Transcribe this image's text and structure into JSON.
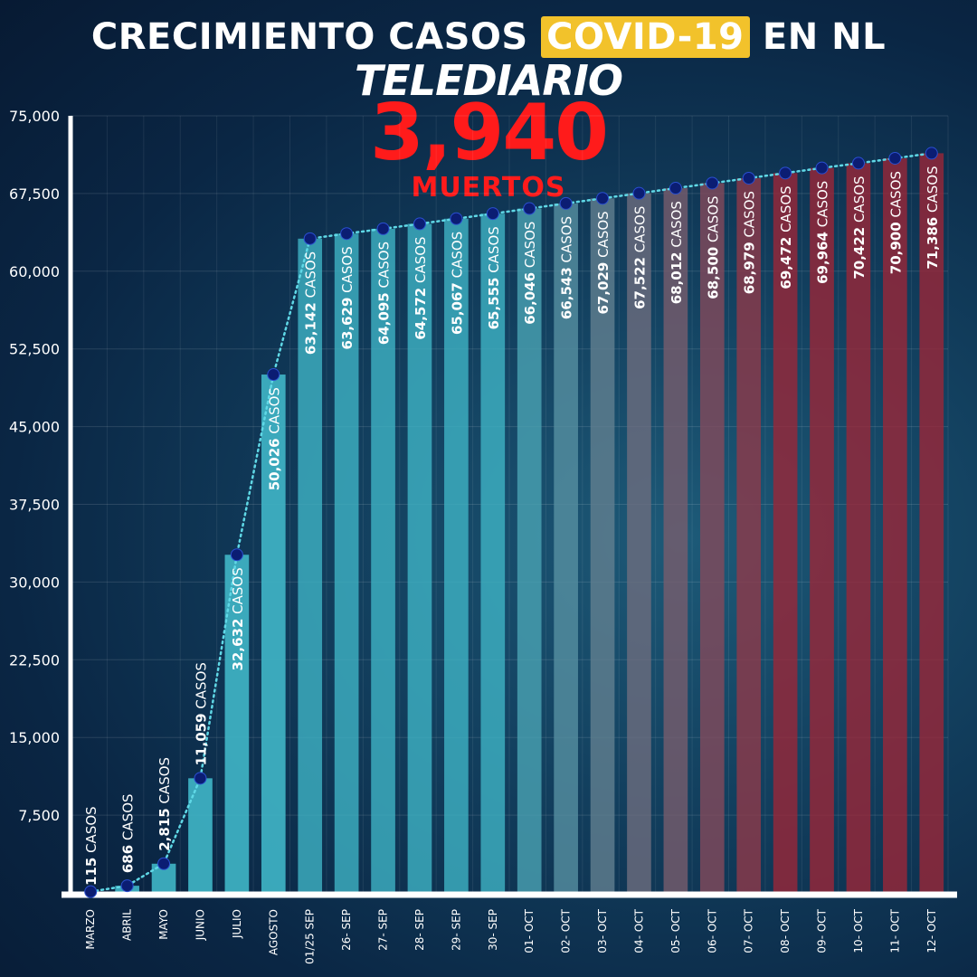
{
  "header": {
    "title_pre": "CRECIMIENTO CASOS ",
    "title_highlight": "COVID-19",
    "title_post": " EN NL",
    "brand": "TELEDIARIO",
    "deaths_value": "3,940",
    "deaths_label": "MUERTOS"
  },
  "chart_data": {
    "type": "bar",
    "title": "CRECIMIENTO CASOS COVID-19 EN NL",
    "ylim": [
      0,
      75000
    ],
    "yticks": [
      7500,
      15000,
      22500,
      30000,
      37500,
      45000,
      52500,
      60000,
      67500,
      75000
    ],
    "ytick_labels": [
      "7,500",
      "15,000",
      "22,500",
      "30,000",
      "37,500",
      "45,000",
      "52,500",
      "60,000",
      "67,500",
      "75,000"
    ],
    "grid": true,
    "categories": [
      "MARZO",
      "ABRIL",
      "MAYO",
      "JUNIO",
      "JULIO",
      "AGOSTO",
      "01/25 SEP",
      "26- SEP",
      "27- SEP",
      "28- SEP",
      "29- SEP",
      "30- SEP",
      "01- OCT",
      "02- OCT",
      "03- OCT",
      "04- OCT",
      "05- OCT",
      "06- OCT",
      "07- OCT",
      "08- OCT",
      "09- OCT",
      "10- OCT",
      "11- OCT",
      "12- OCT"
    ],
    "values": [
      115,
      686,
      2815,
      11059,
      32632,
      50026,
      63142,
      63629,
      64095,
      64572,
      65067,
      65555,
      66046,
      66543,
      67029,
      67522,
      68012,
      68500,
      68979,
      69472,
      69964,
      70422,
      70900,
      71386
    ],
    "value_labels": [
      "115",
      "686",
      "2,815",
      "11,059",
      "32,632",
      "50,026",
      "63,142",
      "63,629",
      "64,095",
      "64,572",
      "65,067",
      "65,555",
      "66,046",
      "66,543",
      "67,029",
      "67,522",
      "68,012",
      "68,500",
      "68,979",
      "69,472",
      "69,964",
      "70,422",
      "70,900",
      "71,386"
    ],
    "value_suffix": " CASOS",
    "colors": {
      "bar_start": "#3fb3c4",
      "bar_end": "#9a2738",
      "line": "#5fd8e6",
      "point": "#0b1d73",
      "axis": "#ffffff"
    }
  }
}
